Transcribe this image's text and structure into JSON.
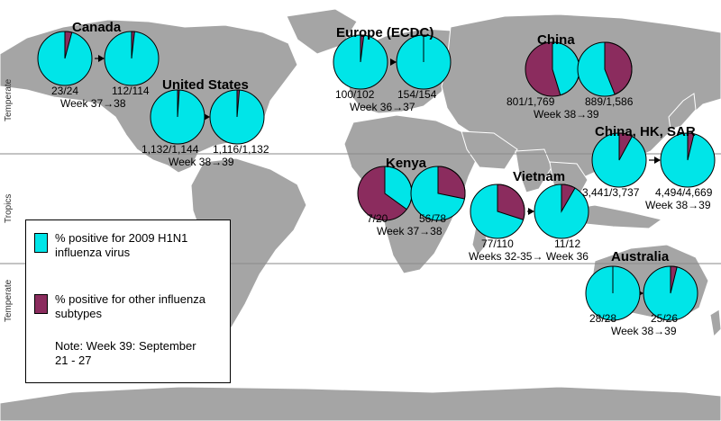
{
  "colors": {
    "h1n1": "#00e5e8",
    "other": "#8b2c5e",
    "land": "#a5a5a5",
    "ocean": "#ffffff",
    "border": "#ffffff"
  },
  "zones": {
    "top": "Temperate",
    "middle": "Tropics",
    "bottom": "Temperate"
  },
  "regions": [
    {
      "name": "Canada",
      "period": "Week 37→38",
      "pies": [
        {
          "label": "23/24",
          "positive": 23,
          "total": 24
        },
        {
          "label": "112/114",
          "positive": 112,
          "total": 114
        }
      ]
    },
    {
      "name": "United States",
      "period": "Week 38→39",
      "pies": [
        {
          "label": "1,132/1,144",
          "positive": 1132,
          "total": 1144
        },
        {
          "label": "1,116/1,132",
          "positive": 1116,
          "total": 1132
        }
      ]
    },
    {
      "name": "Europe (ECDC)",
      "period": "Week 36→37",
      "pies": [
        {
          "label": "100/102",
          "positive": 100,
          "total": 102
        },
        {
          "label": "154/154",
          "positive": 154,
          "total": 154
        }
      ]
    },
    {
      "name": "China",
      "period": "Week 38→39",
      "pies": [
        {
          "label": "801/1,769",
          "positive": 801,
          "total": 1769
        },
        {
          "label": "889/1,586",
          "positive": 889,
          "total": 1586
        }
      ]
    },
    {
      "name": "China, HK, SAR",
      "period": "Week 38→39",
      "pies": [
        {
          "label": "3,441/3,737",
          "positive": 3441,
          "total": 3737
        },
        {
          "label": "4,494/4,669",
          "positive": 4494,
          "total": 4669
        }
      ]
    },
    {
      "name": "Kenya",
      "period": "Week 37→38",
      "pies": [
        {
          "label": "7/20",
          "positive": 7,
          "total": 20
        },
        {
          "label": "56/78",
          "positive": 56,
          "total": 78
        }
      ]
    },
    {
      "name": "Vietnam",
      "period": "Weeks 32-35→ Week 36",
      "pies": [
        {
          "label": "77/110",
          "positive": 77,
          "total": 110
        },
        {
          "label": "11/12",
          "positive": 11,
          "total": 12
        }
      ]
    },
    {
      "name": "Australia",
      "period": "Week 38→39",
      "pies": [
        {
          "label": "28/28",
          "positive": 28,
          "total": 28
        },
        {
          "label": "25/26",
          "positive": 25,
          "total": 26
        }
      ]
    }
  ],
  "legend": {
    "h1n1_label": "% positive for 2009 H1N1 influenza virus",
    "other_label": "% positive for other influenza subtypes",
    "note": "Note: Week 39: September 21 - 27"
  }
}
